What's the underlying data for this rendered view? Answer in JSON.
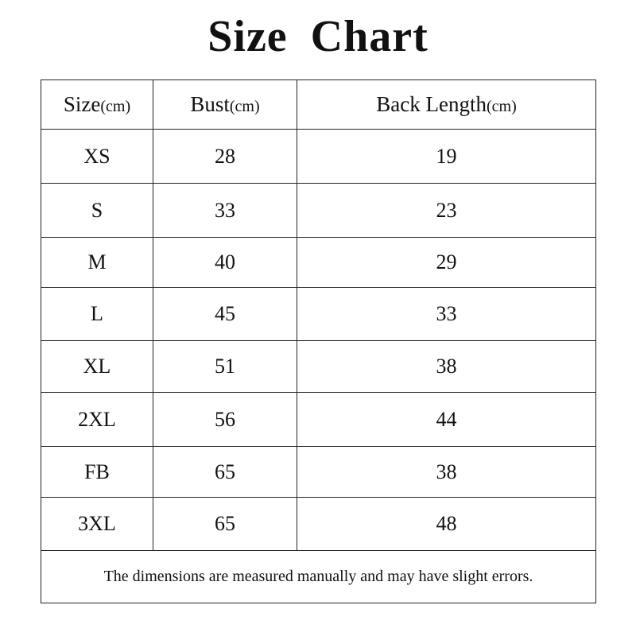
{
  "title": "Size  Chart",
  "headers": [
    {
      "label": "Size",
      "unit": "(cm)"
    },
    {
      "label": "Bust",
      "unit": "(cm)"
    },
    {
      "label": "Back Length",
      "unit": "(cm)"
    }
  ],
  "rows": [
    [
      "XS",
      "28",
      "19"
    ],
    [
      "S",
      "33",
      "23"
    ],
    [
      "M",
      "40",
      "29"
    ],
    [
      "L",
      "45",
      "33"
    ],
    [
      "XL",
      "51",
      "38"
    ],
    [
      "2XL",
      "56",
      "44"
    ],
    [
      "FB",
      "65",
      "38"
    ],
    [
      "3XL",
      "65",
      "48"
    ]
  ],
  "note": "The dimensions are measured manually and may have slight errors."
}
